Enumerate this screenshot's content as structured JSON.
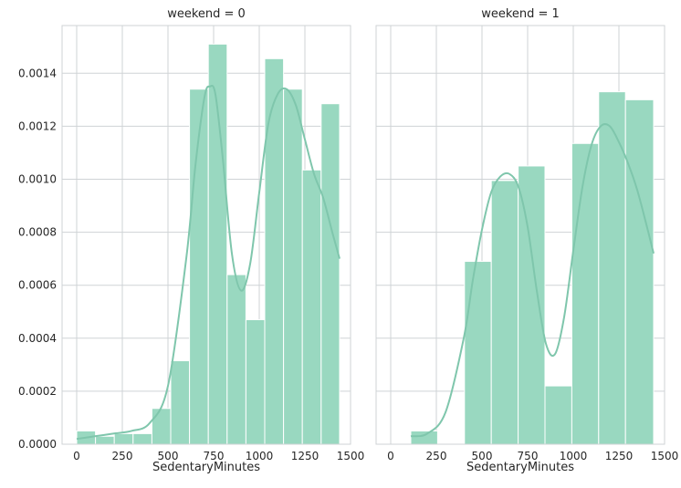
{
  "chart_data": [
    {
      "type": "bar",
      "title": "weekend = 0",
      "xlabel": "SedentaryMinutes",
      "ylabel": "",
      "xlim": [
        -80,
        1500
      ],
      "ylim": [
        0,
        0.00158
      ],
      "xticks": [
        0,
        250,
        500,
        750,
        1000,
        1250,
        1500
      ],
      "yticks": [
        0.0,
        0.0002,
        0.0004,
        0.0006,
        0.0008,
        0.001,
        0.0012,
        0.0014
      ],
      "ytick_labels": [
        "0.0000",
        "0.0002",
        "0.0004",
        "0.0006",
        "0.0008",
        "0.0010",
        "0.0012",
        "0.0014"
      ],
      "bins": [
        {
          "x0": 0,
          "x1": 103,
          "value": 5e-05
        },
        {
          "x0": 103,
          "x1": 206,
          "value": 3e-05
        },
        {
          "x0": 206,
          "x1": 309,
          "value": 4e-05
        },
        {
          "x0": 309,
          "x1": 412,
          "value": 4e-05
        },
        {
          "x0": 412,
          "x1": 515,
          "value": 0.000135
        },
        {
          "x0": 515,
          "x1": 618,
          "value": 0.000315
        },
        {
          "x0": 618,
          "x1": 721,
          "value": 0.00134
        },
        {
          "x0": 721,
          "x1": 824,
          "value": 0.00151
        },
        {
          "x0": 824,
          "x1": 927,
          "value": 0.00064
        },
        {
          "x0": 927,
          "x1": 1030,
          "value": 0.00047
        },
        {
          "x0": 1030,
          "x1": 1133,
          "value": 0.001455
        },
        {
          "x0": 1133,
          "x1": 1236,
          "value": 0.00134
        },
        {
          "x0": 1236,
          "x1": 1339,
          "value": 0.001035
        },
        {
          "x0": 1339,
          "x1": 1440,
          "value": 0.001285
        }
      ],
      "kde": {
        "x": [
          0,
          100,
          200,
          300,
          400,
          500,
          600,
          650,
          700,
          730,
          760,
          800,
          850,
          900,
          950,
          1000,
          1050,
          1100,
          1150,
          1200,
          1250,
          1300,
          1350,
          1400,
          1440
        ],
        "y": [
          2e-05,
          3e-05,
          4e-05,
          5e-05,
          8e-05,
          0.00022,
          0.0007,
          0.00105,
          0.00131,
          0.00135,
          0.00132,
          0.00108,
          0.00072,
          0.00058,
          0.00068,
          0.00095,
          0.00121,
          0.00132,
          0.00134,
          0.00128,
          0.00115,
          0.00102,
          0.00093,
          0.0008,
          0.0007
        ]
      },
      "color": "#99d8c0",
      "line_color": "#7fc6ac",
      "grid": true
    },
    {
      "type": "bar",
      "title": "weekend = 1",
      "xlabel": "SedentaryMinutes",
      "ylabel": "",
      "xlim": [
        -80,
        1500
      ],
      "ylim": [
        0,
        0.00158
      ],
      "xticks": [
        0,
        250,
        500,
        750,
        1000,
        1250,
        1500
      ],
      "bins": [
        {
          "x0": 110,
          "x1": 257,
          "value": 5e-05
        },
        {
          "x0": 257,
          "x1": 404,
          "value": 0.0
        },
        {
          "x0": 404,
          "x1": 551,
          "value": 0.00069
        },
        {
          "x0": 551,
          "x1": 698,
          "value": 0.000995
        },
        {
          "x0": 698,
          "x1": 845,
          "value": 0.00105
        },
        {
          "x0": 845,
          "x1": 992,
          "value": 0.00022
        },
        {
          "x0": 992,
          "x1": 1139,
          "value": 0.001135
        },
        {
          "x0": 1139,
          "x1": 1286,
          "value": 0.00133
        },
        {
          "x0": 1286,
          "x1": 1440,
          "value": 0.0013
        }
      ],
      "kde": {
        "x": [
          110,
          200,
          300,
          400,
          450,
          500,
          550,
          600,
          650,
          700,
          750,
          800,
          850,
          900,
          950,
          1000,
          1050,
          1100,
          1150,
          1200,
          1250,
          1300,
          1350,
          1400,
          1440
        ],
        "y": [
          3e-05,
          4e-05,
          0.00012,
          0.0004,
          0.00062,
          0.00081,
          0.00095,
          0.00101,
          0.00102,
          0.00097,
          0.00082,
          0.00058,
          0.00038,
          0.00034,
          0.00048,
          0.00073,
          0.00097,
          0.00113,
          0.0012,
          0.0012,
          0.00114,
          0.00106,
          0.00096,
          0.00083,
          0.00072
        ]
      },
      "color": "#99d8c0",
      "line_color": "#7fc6ac",
      "grid": true
    }
  ]
}
